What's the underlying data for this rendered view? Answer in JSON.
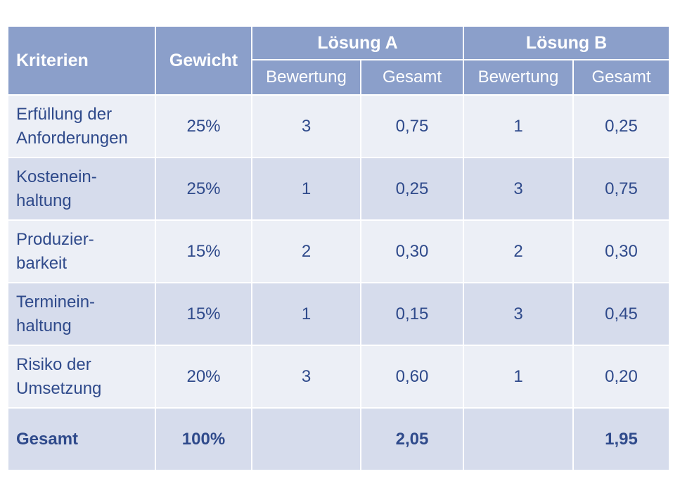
{
  "header": {
    "criteria": "Kriterien",
    "weight": "Gewicht",
    "solution_a": "Lösung A",
    "solution_b": "Lösung B",
    "rating": "Bewertung",
    "total": "Gesamt"
  },
  "rows": [
    {
      "criterion_line1": "Erfüllung der",
      "criterion_line2": "Anforderungen",
      "weight": "25%",
      "a_rating": "3",
      "a_total": "0,75",
      "b_rating": "1",
      "b_total": "0,25"
    },
    {
      "criterion_line1": "Kostenein-",
      "criterion_line2": "haltung",
      "weight": "25%",
      "a_rating": "1",
      "a_total": "0,25",
      "b_rating": "3",
      "b_total": "0,75"
    },
    {
      "criterion_line1": "Produzier-",
      "criterion_line2": "barkeit",
      "weight": "15%",
      "a_rating": "2",
      "a_total": "0,30",
      "b_rating": "2",
      "b_total": "0,30"
    },
    {
      "criterion_line1": "Terminein-",
      "criterion_line2": "haltung",
      "weight": "15%",
      "a_rating": "1",
      "a_total": "0,15",
      "b_rating": "3",
      "b_total": "0,45"
    },
    {
      "criterion_line1": "Risiko der",
      "criterion_line2": "Umsetzung",
      "weight": "20%",
      "a_rating": "3",
      "a_total": "0,60",
      "b_rating": "1",
      "b_total": "0,20"
    }
  ],
  "total_row": {
    "label": "Gesamt",
    "weight": "100%",
    "a_rating": "",
    "a_total": "2,05",
    "b_rating": "",
    "b_total": "1,95"
  },
  "colors": {
    "header_bg": "#8b9fca",
    "header_text": "#ffffff",
    "row_light": "#eceff6",
    "row_dark": "#d6dcec",
    "body_text": "#2f4a8b"
  }
}
